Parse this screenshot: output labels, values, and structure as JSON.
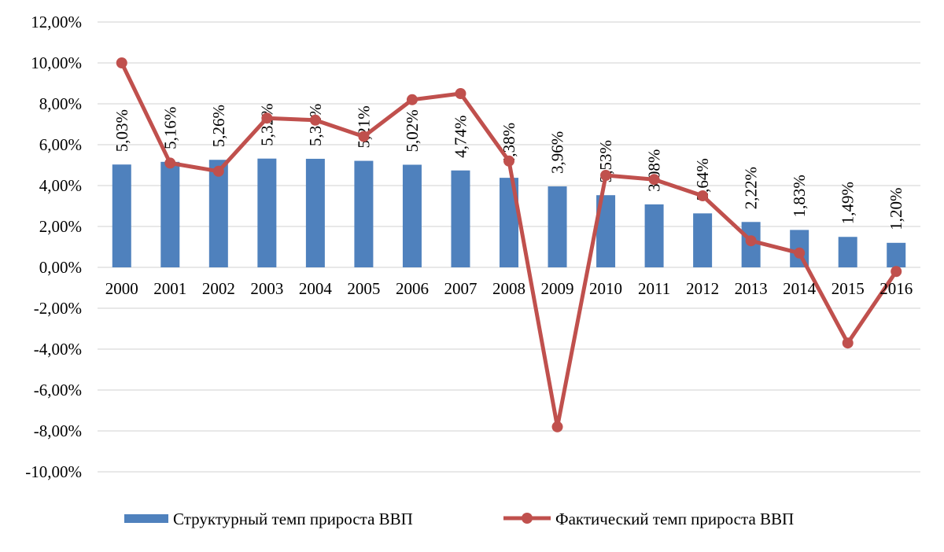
{
  "chart_data": {
    "type": "bar",
    "title": "",
    "xlabel": "",
    "ylabel": "",
    "ylim": [
      -10,
      12
    ],
    "ytick_step": 2,
    "y_ticks": [
      "12,00%",
      "10,00%",
      "8,00%",
      "6,00%",
      "4,00%",
      "2,00%",
      "0,00%",
      "-2,00%",
      "-4,00%",
      "-6,00%",
      "-8,00%",
      "-10,00%"
    ],
    "grid": true,
    "legend_position": "bottom",
    "categories": [
      "2000",
      "2001",
      "2002",
      "2003",
      "2004",
      "2005",
      "2006",
      "2007",
      "2008",
      "2009",
      "2010",
      "2011",
      "2012",
      "2013",
      "2014",
      "2015",
      "2016"
    ],
    "series": [
      {
        "name": "Структурный темп прироста ВВП",
        "type": "bar",
        "color": "#4f81bd",
        "values": [
          5.03,
          5.16,
          5.26,
          5.32,
          5.31,
          5.21,
          5.02,
          4.74,
          4.38,
          3.96,
          3.53,
          3.08,
          2.64,
          2.22,
          1.83,
          1.49,
          1.2
        ],
        "labels": [
          "5,03%",
          "5,16%",
          "5,26%",
          "5,32%",
          "5,31%",
          "5,21%",
          "5,02%",
          "4,74%",
          "4,38%",
          "3,96%",
          "3,53%",
          "3,08%",
          "2,64%",
          "2,22%",
          "1,83%",
          "1,49%",
          "1,20%"
        ]
      },
      {
        "name": "Фактический темп прироста ВВП",
        "type": "line",
        "color": "#c0504d",
        "marker": "circle",
        "values": [
          10.0,
          5.1,
          4.7,
          7.3,
          7.2,
          6.4,
          8.2,
          8.5,
          5.2,
          -7.8,
          4.5,
          4.3,
          3.5,
          1.3,
          0.7,
          -3.7,
          -0.2
        ]
      }
    ]
  }
}
